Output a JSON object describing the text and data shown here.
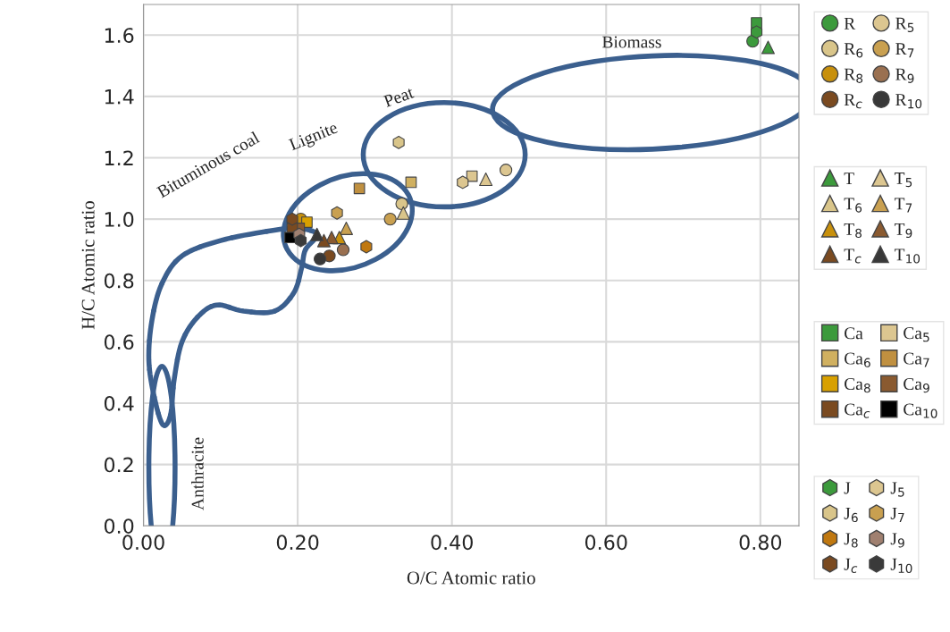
{
  "chart_data": {
    "type": "scatter",
    "xlabel": "O/C Atomic ratio",
    "ylabel": "H/C Atomic ratio",
    "xlim": [
      0,
      0.85
    ],
    "ylim": [
      0,
      1.7
    ],
    "xticks": [
      {
        "value": 0,
        "label": "0.00"
      },
      {
        "value": 0.2,
        "label": "0.20"
      },
      {
        "value": 0.4,
        "label": "0.40"
      },
      {
        "value": 0.6,
        "label": "0.60"
      },
      {
        "value": 0.8,
        "label": "0.80"
      }
    ],
    "yticks": [
      {
        "value": 0,
        "label": "0.0"
      },
      {
        "value": 0.2,
        "label": "0.2"
      },
      {
        "value": 0.4,
        "label": "0.4"
      },
      {
        "value": 0.6,
        "label": "0.6"
      },
      {
        "value": 0.8,
        "label": "0.8"
      },
      {
        "value": 1.0,
        "label": "1.0"
      },
      {
        "value": 1.2,
        "label": "1.2"
      },
      {
        "value": 1.4,
        "label": "1.4"
      },
      {
        "value": 1.6,
        "label": "1.6"
      }
    ],
    "grid": true,
    "legend": "right",
    "annotations": [
      "Biomass",
      "Peat",
      "Lignite",
      "Bituminous coal",
      "Anthracite"
    ],
    "series": [
      {
        "name": "R",
        "marker": "circle",
        "color": "#3c9a3c",
        "x": [
          0.79
        ],
        "values": [
          1.58
        ]
      },
      {
        "name": "R$_{5}$",
        "marker": "circle",
        "color": "#dcc690",
        "x": [
          0.47
        ],
        "values": [
          1.16
        ]
      },
      {
        "name": "R$_{6}$",
        "marker": "circle",
        "color": "#d9c58a",
        "x": [
          0.335
        ],
        "values": [
          1.05
        ]
      },
      {
        "name": "R$_{7}$",
        "marker": "circle",
        "color": "#c9a050",
        "x": [
          0.32
        ],
        "values": [
          1.0
        ]
      },
      {
        "name": "R$_{8}$",
        "marker": "circle",
        "color": "#c8900c",
        "x": [
          0.204
        ],
        "values": [
          1.0
        ]
      },
      {
        "name": "R$_{9}$",
        "marker": "circle",
        "color": "#9a7050",
        "x": [
          0.259
        ],
        "values": [
          0.9
        ]
      },
      {
        "name": "R$_{c}$",
        "marker": "circle",
        "color": "#7a4a20",
        "x": [
          0.241
        ],
        "values": [
          0.88
        ]
      },
      {
        "name": "R$_{10}$",
        "marker": "circle",
        "color": "#383838",
        "x": [
          0.229
        ],
        "values": [
          0.87
        ]
      },
      {
        "name": "T",
        "marker": "triangle",
        "color": "#3c9a3c",
        "x": [
          0.81
        ],
        "values": [
          1.56
        ]
      },
      {
        "name": "T$_{5}$",
        "marker": "triangle",
        "color": "#dcc690",
        "x": [
          0.444
        ],
        "values": [
          1.13
        ]
      },
      {
        "name": "T$_{6}$",
        "marker": "triangle",
        "color": "#d9c58a",
        "x": [
          0.337
        ],
        "values": [
          1.02
        ]
      },
      {
        "name": "T$_{7}$",
        "marker": "triangle",
        "color": "#c9a050",
        "x": [
          0.263
        ],
        "values": [
          0.97
        ]
      },
      {
        "name": "T$_{8}$",
        "marker": "triangle",
        "color": "#c8900c",
        "x": [
          0.254
        ],
        "values": [
          0.94
        ]
      },
      {
        "name": "T$_{9}$",
        "marker": "triangle",
        "color": "#8a5a30",
        "x": [
          0.244
        ],
        "values": [
          0.94
        ]
      },
      {
        "name": "T$_{c}$",
        "marker": "triangle",
        "color": "#7a4a20",
        "x": [
          0.234
        ],
        "values": [
          0.93
        ]
      },
      {
        "name": "T$_{10}$",
        "marker": "triangle",
        "color": "#383838",
        "x": [
          0.225
        ],
        "values": [
          0.95
        ]
      },
      {
        "name": "Ca",
        "marker": "square",
        "color": "#3c9a3c",
        "x": [
          0.795
        ],
        "values": [
          1.64
        ]
      },
      {
        "name": "Ca$_{5}$",
        "marker": "square",
        "color": "#dcc690",
        "x": [
          0.426
        ],
        "values": [
          1.14
        ]
      },
      {
        "name": "Ca$_{6}$",
        "marker": "square",
        "color": "#d0b060",
        "x": [
          0.347
        ],
        "values": [
          1.12
        ]
      },
      {
        "name": "Ca$_{7}$",
        "marker": "square",
        "color": "#c09040",
        "x": [
          0.28
        ],
        "values": [
          1.1
        ]
      },
      {
        "name": "Ca$_{8}$",
        "marker": "square",
        "color": "#d8a000",
        "x": [
          0.212
        ],
        "values": [
          0.99
        ]
      },
      {
        "name": "Ca$_{9}$",
        "marker": "square",
        "color": "#8a5a30",
        "x": [
          0.202
        ],
        "values": [
          0.97
        ]
      },
      {
        "name": "Ca$_{c}$",
        "marker": "square",
        "color": "#7a4a20",
        "x": [
          0.193
        ],
        "values": [
          0.97
        ]
      },
      {
        "name": "Ca$_{10}$",
        "marker": "square",
        "color": "#000000",
        "x": [
          0.19
        ],
        "values": [
          0.94
        ]
      },
      {
        "name": "J",
        "color": "#3c9a3c",
        "x": [
          0.795
        ],
        "values": [
          1.61
        ]
      },
      {
        "name": "J$_{5}$",
        "color": "#dcc690",
        "x": [
          0.414
        ],
        "values": [
          1.12
        ]
      },
      {
        "name": "J$_{6}$",
        "color": "#d9c58a",
        "x": [
          0.331
        ],
        "values": [
          1.25
        ]
      },
      {
        "name": "J$_{7}$",
        "color": "#c9a050",
        "x": [
          0.251
        ],
        "values": [
          1.02
        ]
      },
      {
        "name": "J$_{8}$",
        "color": "#c07810",
        "x": [
          0.289
        ],
        "values": [
          0.91
        ]
      },
      {
        "name": "J$_{9}$",
        "color": "#a08070",
        "x": [
          0.202
        ],
        "values": [
          0.95
        ]
      },
      {
        "name": "J$_{c}$",
        "color": "#7a4a20",
        "x": [
          0.193
        ],
        "values": [
          1.0
        ]
      },
      {
        "name": "J$_{10}$",
        "color": "#3a3a3a",
        "x": [
          0.204
        ],
        "values": [
          0.93
        ]
      }
    ]
  }
}
